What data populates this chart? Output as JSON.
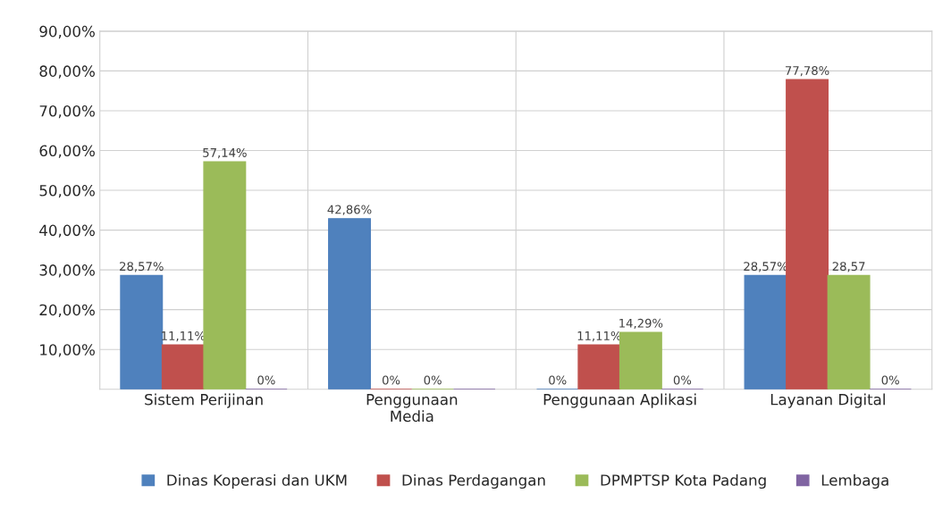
{
  "chart_data": {
    "type": "bar",
    "categories": [
      "Sistem Perijinan",
      "Penggunaan\nMedia",
      "Penggunaan Aplikasi",
      "Layanan Digital"
    ],
    "series": [
      {
        "name": "Dinas Koperasi dan UKM",
        "color": "#4f81bd",
        "values": [
          28.57,
          42.86,
          0,
          28.57
        ],
        "value_labels": [
          "28,57%",
          "42,86%",
          "0%",
          "28,57%"
        ]
      },
      {
        "name": "Dinas Perdagangan",
        "color": "#c0504d",
        "values": [
          11.11,
          0,
          11.11,
          77.78
        ],
        "value_labels": [
          "11,11%",
          "0%",
          "11,11%",
          "77,78%"
        ]
      },
      {
        "name": "DPMPTSP Kota Padang",
        "color": "#9bbb59",
        "values": [
          57.14,
          0,
          14.29,
          28.57
        ],
        "value_labels": [
          "57,14%",
          "0%",
          "14,29%",
          "28,57"
        ]
      },
      {
        "name": "Lembaga",
        "color": "#8064a2",
        "values": [
          0,
          0,
          0,
          0
        ],
        "value_labels": [
          "0%",
          null,
          "0%",
          "0%"
        ]
      }
    ],
    "ylim": [
      0,
      90
    ],
    "yticks": [
      {
        "value": 10,
        "label": "10,00%"
      },
      {
        "value": 20,
        "label": "20,00%"
      },
      {
        "value": 30,
        "label": "30,00%"
      },
      {
        "value": 40,
        "label": "40,00%"
      },
      {
        "value": 50,
        "label": "50,00%"
      },
      {
        "value": 60,
        "label": "60,00%"
      },
      {
        "value": 70,
        "label": "70,00%"
      },
      {
        "value": 80,
        "label": "80,00%"
      },
      {
        "value": 90,
        "label": "90,00%"
      }
    ],
    "grid": true,
    "legend": "bottom"
  }
}
